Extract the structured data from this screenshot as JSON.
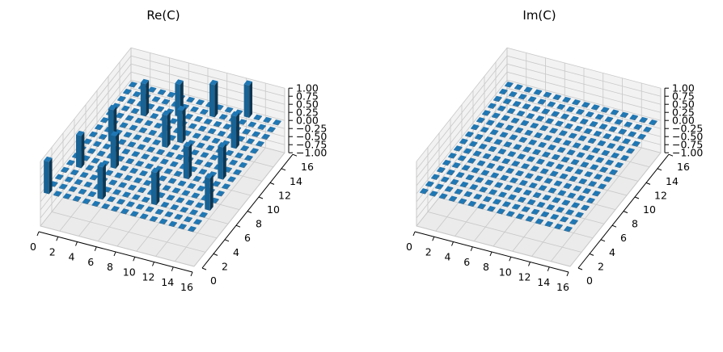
{
  "chart_data": [
    {
      "type": "bar3d",
      "title": "Re(C)",
      "x_ticks": [
        "0",
        "2",
        "4",
        "6",
        "8",
        "10",
        "12",
        "14",
        "16"
      ],
      "y_ticks": [
        "0",
        "2",
        "4",
        "6",
        "8",
        "10",
        "12",
        "14",
        "16"
      ],
      "z_ticks": [
        "1.00",
        "0.75",
        "0.50",
        "0.25",
        "0.00",
        "−0.25",
        "−0.50",
        "−0.75",
        "−1.00"
      ],
      "xlim": [
        0,
        16
      ],
      "ylim": [
        0,
        16
      ],
      "zlim": [
        -1,
        1
      ],
      "grid": true,
      "bar_color": "#1f77b4",
      "grid_size": 16,
      "baseline_value": 0,
      "nonzero": [
        {
          "i": 0,
          "j": 0,
          "value": 1
        },
        {
          "i": 5,
          "j": 1,
          "value": 1
        },
        {
          "i": 10,
          "j": 2,
          "value": 1
        },
        {
          "i": 15,
          "j": 3,
          "value": 1
        },
        {
          "i": 1,
          "j": 4,
          "value": 1
        },
        {
          "i": 4,
          "j": 5,
          "value": 1
        },
        {
          "i": 11,
          "j": 6,
          "value": 1
        },
        {
          "i": 14,
          "j": 7,
          "value": 1
        },
        {
          "i": 2,
          "j": 8,
          "value": 1
        },
        {
          "i": 7,
          "j": 9,
          "value": 1
        },
        {
          "i": 8,
          "j": 10,
          "value": 1
        },
        {
          "i": 13,
          "j": 11,
          "value": 1
        },
        {
          "i": 3,
          "j": 12,
          "value": 1
        },
        {
          "i": 6,
          "j": 13,
          "value": 1
        },
        {
          "i": 9,
          "j": 14,
          "value": 1
        },
        {
          "i": 12,
          "j": 15,
          "value": 1
        }
      ]
    },
    {
      "type": "bar3d",
      "title": "Im(C)",
      "x_ticks": [
        "0",
        "2",
        "4",
        "6",
        "8",
        "10",
        "12",
        "14",
        "16"
      ],
      "y_ticks": [
        "0",
        "2",
        "4",
        "6",
        "8",
        "10",
        "12",
        "14",
        "16"
      ],
      "z_ticks": [
        "1.00",
        "0.75",
        "0.50",
        "0.25",
        "0.00",
        "−0.25",
        "−0.50",
        "−0.75",
        "−1.00"
      ],
      "xlim": [
        0,
        16
      ],
      "ylim": [
        0,
        16
      ],
      "zlim": [
        -1,
        1
      ],
      "grid": true,
      "bar_color": "#1f77b4",
      "grid_size": 16,
      "baseline_value": 0,
      "nonzero": []
    }
  ]
}
